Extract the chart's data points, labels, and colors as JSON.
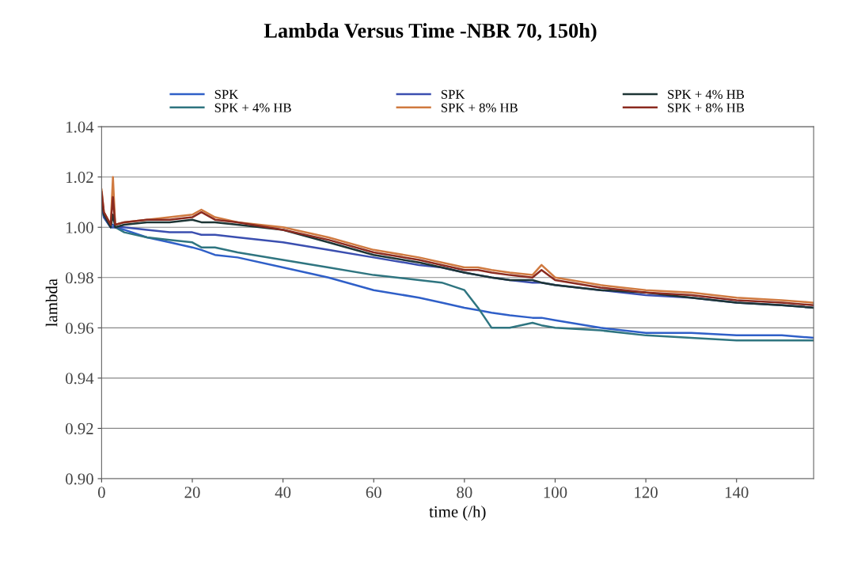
{
  "chart_data": {
    "type": "line",
    "title": "Lambda Versus Time -NBR 70, 150h)",
    "xlabel": "time (/h)",
    "ylabel": "lambda",
    "xlim": [
      0,
      157
    ],
    "xticks": [
      0,
      20,
      40,
      60,
      80,
      100,
      120,
      140
    ],
    "ylim": [
      0.9,
      1.04
    ],
    "yticks": [
      {
        "value": 0.9,
        "label": "0.90"
      },
      {
        "value": 0.92,
        "label": "0.92"
      },
      {
        "value": 0.94,
        "label": "0.94"
      },
      {
        "value": 0.96,
        "label": "0.96"
      },
      {
        "value": 0.98,
        "label": "0.98"
      },
      {
        "value": 1.0,
        "label": "1.00"
      },
      {
        "value": 1.02,
        "label": "1.02"
      },
      {
        "value": 1.04,
        "label": "1.04"
      }
    ],
    "grid": "y",
    "legend": "top",
    "line_style": "solid",
    "marker": "none",
    "x": [
      0,
      0.5,
      2,
      2.5,
      3,
      5,
      10,
      15,
      20,
      22,
      25,
      30,
      40,
      50,
      60,
      70,
      75,
      80,
      83,
      86,
      90,
      95,
      97,
      100,
      110,
      120,
      130,
      140,
      150,
      157
    ],
    "series": [
      {
        "name": "SPK",
        "color": "#2f5fc8",
        "values": [
          1.012,
          1.005,
          1.001,
          1.001,
          1.0,
          0.999,
          0.996,
          0.994,
          0.992,
          0.991,
          0.989,
          0.988,
          0.984,
          0.98,
          0.975,
          0.972,
          0.97,
          0.968,
          0.967,
          0.966,
          0.965,
          0.964,
          0.964,
          0.963,
          0.96,
          0.958,
          0.958,
          0.957,
          0.957,
          0.956
        ]
      },
      {
        "name": "SPK + 4% HB",
        "color": "#2f7580",
        "values": [
          1.01,
          1.004,
          1.0,
          1.0,
          1.0,
          0.998,
          0.996,
          0.995,
          0.994,
          0.992,
          0.992,
          0.99,
          0.987,
          0.984,
          0.981,
          0.979,
          0.978,
          0.975,
          0.968,
          0.96,
          0.96,
          0.962,
          0.961,
          0.96,
          0.959,
          0.957,
          0.956,
          0.955,
          0.955,
          0.955
        ]
      },
      {
        "name": "SPK",
        "color": "#3b4fb0",
        "values": [
          1.01,
          1.004,
          1.0,
          1.0,
          1.0,
          1.0,
          0.999,
          0.998,
          0.998,
          0.997,
          0.997,
          0.996,
          0.994,
          0.991,
          0.988,
          0.985,
          0.984,
          0.982,
          0.981,
          0.98,
          0.979,
          0.978,
          0.978,
          0.977,
          0.975,
          0.973,
          0.972,
          0.97,
          0.969,
          0.968
        ]
      },
      {
        "name": "SPK + 8% HB",
        "color": "#d07a40",
        "values": [
          1.015,
          1.006,
          1.001,
          1.02,
          1.001,
          1.002,
          1.003,
          1.004,
          1.005,
          1.007,
          1.004,
          1.002,
          1.0,
          0.996,
          0.991,
          0.988,
          0.986,
          0.984,
          0.984,
          0.983,
          0.982,
          0.981,
          0.985,
          0.98,
          0.977,
          0.975,
          0.974,
          0.972,
          0.971,
          0.97
        ]
      },
      {
        "name": "SPK + 4% HB",
        "color": "#1d3535",
        "values": [
          1.012,
          1.005,
          1.0,
          1.005,
          1.0,
          1.001,
          1.002,
          1.002,
          1.003,
          1.002,
          1.002,
          1.001,
          0.999,
          0.994,
          0.989,
          0.986,
          0.984,
          0.982,
          0.981,
          0.98,
          0.979,
          0.979,
          0.978,
          0.977,
          0.975,
          0.974,
          0.972,
          0.97,
          0.969,
          0.968
        ]
      },
      {
        "name": "SPK + 8% HB",
        "color": "#8b2b20",
        "values": [
          1.014,
          1.006,
          1.001,
          1.012,
          1.001,
          1.002,
          1.003,
          1.003,
          1.004,
          1.006,
          1.003,
          1.002,
          0.999,
          0.995,
          0.99,
          0.987,
          0.985,
          0.983,
          0.983,
          0.982,
          0.981,
          0.98,
          0.983,
          0.979,
          0.976,
          0.974,
          0.973,
          0.971,
          0.97,
          0.969
        ]
      }
    ]
  }
}
